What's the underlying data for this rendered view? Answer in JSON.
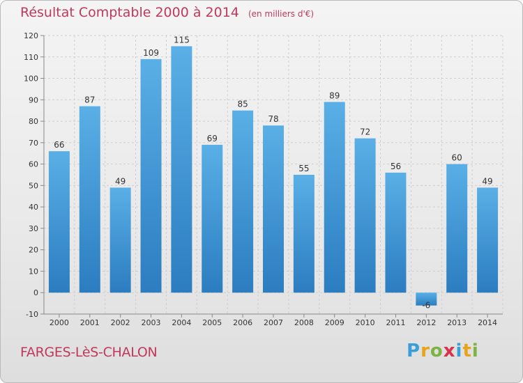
{
  "header": {
    "title": "Résultat Comptable 2000 à 2014",
    "subtitle": "(en milliers d'€)"
  },
  "footer": {
    "commune": "FARGES-LèS-CHALON",
    "logo_letters": [
      "P",
      "r",
      "o",
      "x",
      "i",
      "t",
      "i"
    ],
    "logo_colors": [
      "#3a9fd8",
      "#e8a21b",
      "#7cb342",
      "#d8334a",
      "#3a9fd8",
      "#e8a21b",
      "#7cb342"
    ]
  },
  "colors": {
    "bar_light": "#5aafe6",
    "bar_dark": "#2b7dc0",
    "grid": "#cfcfcf",
    "accent": "#c0395c"
  },
  "chart_data": {
    "type": "bar",
    "title": "Résultat Comptable 2000 à 2014",
    "subtitle": "(en milliers d'€)",
    "xlabel": "",
    "ylabel": "",
    "categories": [
      "2000",
      "2001",
      "2002",
      "2003",
      "2004",
      "2005",
      "2006",
      "2007",
      "2008",
      "2009",
      "2010",
      "2011",
      "2012",
      "2013",
      "2014"
    ],
    "values": [
      66,
      87,
      49,
      109,
      115,
      69,
      85,
      78,
      55,
      89,
      72,
      56,
      -6,
      60,
      49
    ],
    "ylim": [
      -10,
      120
    ],
    "yticks": [
      -10,
      0,
      10,
      20,
      30,
      40,
      50,
      60,
      70,
      80,
      90,
      100,
      110,
      120
    ],
    "grid": true
  }
}
